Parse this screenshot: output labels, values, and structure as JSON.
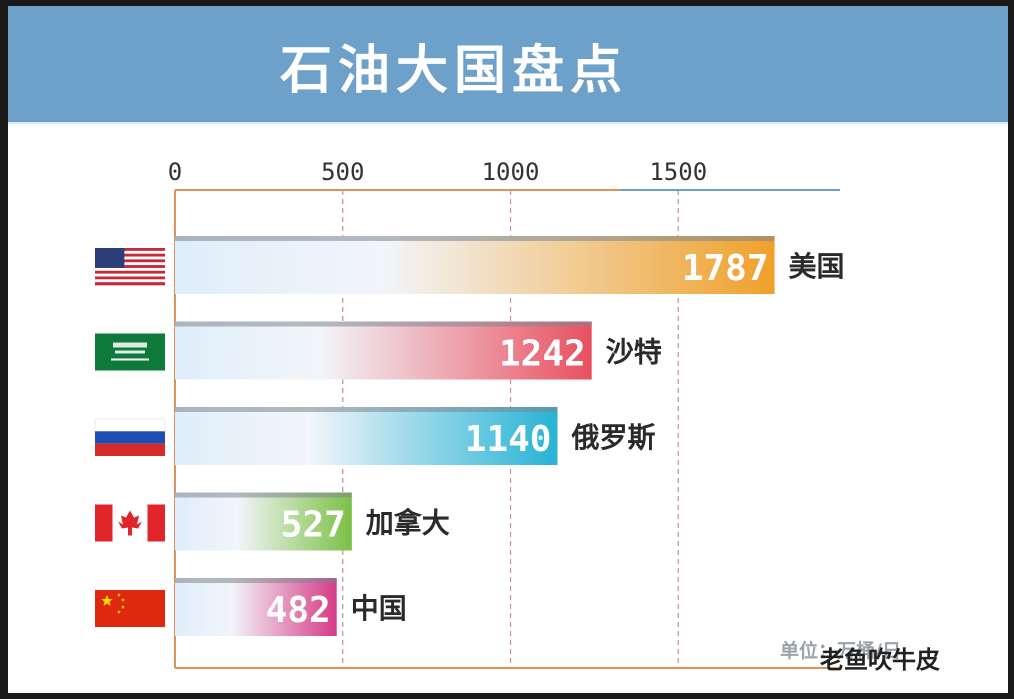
{
  "title": "石油大国盘点",
  "unit_label": "单位：万桶/日",
  "watermark": "老鱼吹牛皮",
  "chart_data": {
    "type": "bar",
    "orientation": "horizontal",
    "title": "石油大国盘点",
    "xlim": [
      0,
      2000
    ],
    "x_ticks": [
      0,
      500,
      1000,
      1500
    ],
    "categories": [
      "美国",
      "沙特",
      "俄罗斯",
      "加拿大",
      "中国"
    ],
    "values": [
      1787,
      1242,
      1140,
      527,
      482
    ],
    "data_labels": [
      "1787",
      "1242",
      "1140",
      "527",
      "482"
    ],
    "colors": [
      "#f0a02a",
      "#e8505f",
      "#27b3d5",
      "#7cc046",
      "#d63a86"
    ],
    "flags": [
      "us-flag-icon",
      "saudi-flag-icon",
      "russia-flag-icon",
      "canada-flag-icon",
      "china-flag-icon"
    ],
    "grid": true
  }
}
